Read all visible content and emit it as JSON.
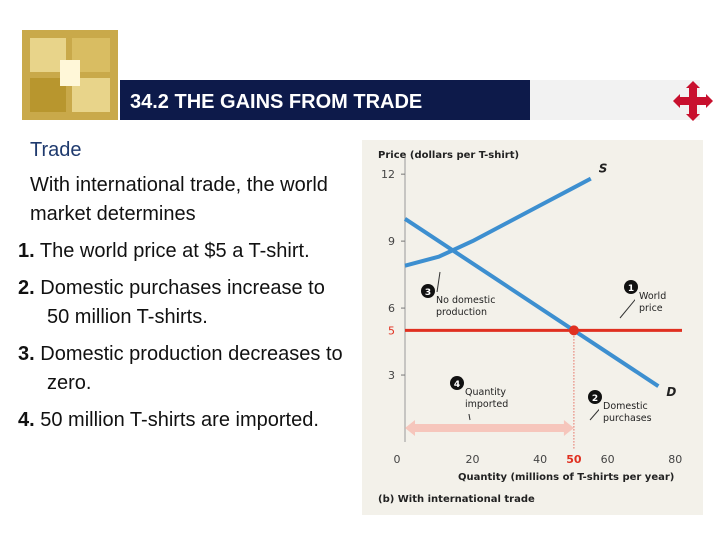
{
  "header": {
    "title": "34.2  THE GAINS FROM TRADE"
  },
  "body": {
    "heading": "Trade",
    "intro": "With international trade, the world market determines",
    "items": [
      {
        "number": "1.",
        "text": "The world price at $5 a T-shirt."
      },
      {
        "number": "2.",
        "text": "Domestic purchases increase to 50 million T-shirts."
      },
      {
        "number": "3.",
        "text": "Domestic production decreases to zero."
      },
      {
        "number": "4.",
        "text": "50 million T-shirts are imported."
      }
    ]
  },
  "chart_data": {
    "type": "line",
    "y_label": "Price (dollars per T-shirt)",
    "x_label": "Quantity (millions of T-shirts per year)",
    "caption": "(b) With international trade",
    "xlim": [
      0,
      82
    ],
    "ylim": [
      0,
      12.5
    ],
    "xticks": [
      0,
      20,
      40,
      60,
      80
    ],
    "yticks": [
      3,
      6,
      9,
      12
    ],
    "world_price": 5,
    "import_quantity": 50,
    "highlight_color": "#e03020",
    "series": [
      {
        "name": "S",
        "color": "#3d8fd0",
        "x": [
          0,
          10,
          20,
          30,
          40,
          50,
          55
        ],
        "values": [
          7.9,
          8.3,
          9,
          9.8,
          10.6,
          11.4,
          11.8
        ]
      },
      {
        "name": "D",
        "color": "#3d8fd0",
        "x": [
          0,
          25,
          50,
          75
        ],
        "values": [
          10,
          7.5,
          5,
          2.5
        ]
      }
    ],
    "annotations": [
      {
        "number": "1",
        "lines": [
          "World",
          "price"
        ]
      },
      {
        "number": "2",
        "lines": [
          "Domestic",
          "purchases"
        ]
      },
      {
        "number": "3",
        "lines": [
          "No domestic",
          "production"
        ]
      },
      {
        "number": "4",
        "lines": [
          "Quantity",
          "imported"
        ]
      }
    ]
  }
}
